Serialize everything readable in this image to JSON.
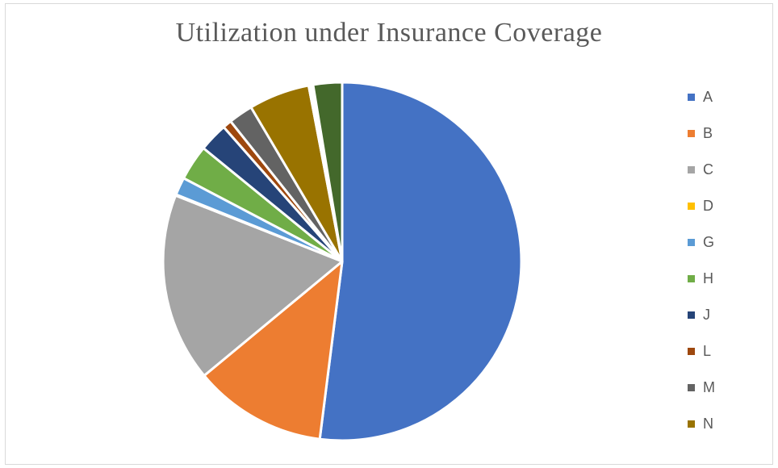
{
  "chart_data": {
    "type": "pie",
    "title": "Utilization under Insurance Coverage",
    "legend_position": "right",
    "slices": [
      {
        "label": "A",
        "value": 52.0,
        "color": "#4472C4"
      },
      {
        "label": "B",
        "value": 12.0,
        "color": "#ED7D31"
      },
      {
        "label": "C",
        "value": 17.0,
        "color": "#A5A5A5"
      },
      {
        "label": "D",
        "value": 0.1,
        "color": "#FFC000"
      },
      {
        "label": "G",
        "value": 1.6,
        "color": "#5B9BD5"
      },
      {
        "label": "H",
        "value": 3.2,
        "color": "#70AD47"
      },
      {
        "label": "J",
        "value": 2.6,
        "color": "#264478"
      },
      {
        "label": "L",
        "value": 0.8,
        "color": "#9E480E"
      },
      {
        "label": "M",
        "value": 2.2,
        "color": "#636363"
      },
      {
        "label": "N",
        "value": 5.5,
        "color": "#997300"
      },
      {
        "label": "",
        "value": 0.4,
        "color": "#FFFFFF"
      },
      {
        "label": "",
        "value": 2.6,
        "color": "#43682B"
      }
    ],
    "legend": [
      "A",
      "B",
      "C",
      "D",
      "G",
      "H",
      "J",
      "L",
      "M",
      "N"
    ]
  }
}
